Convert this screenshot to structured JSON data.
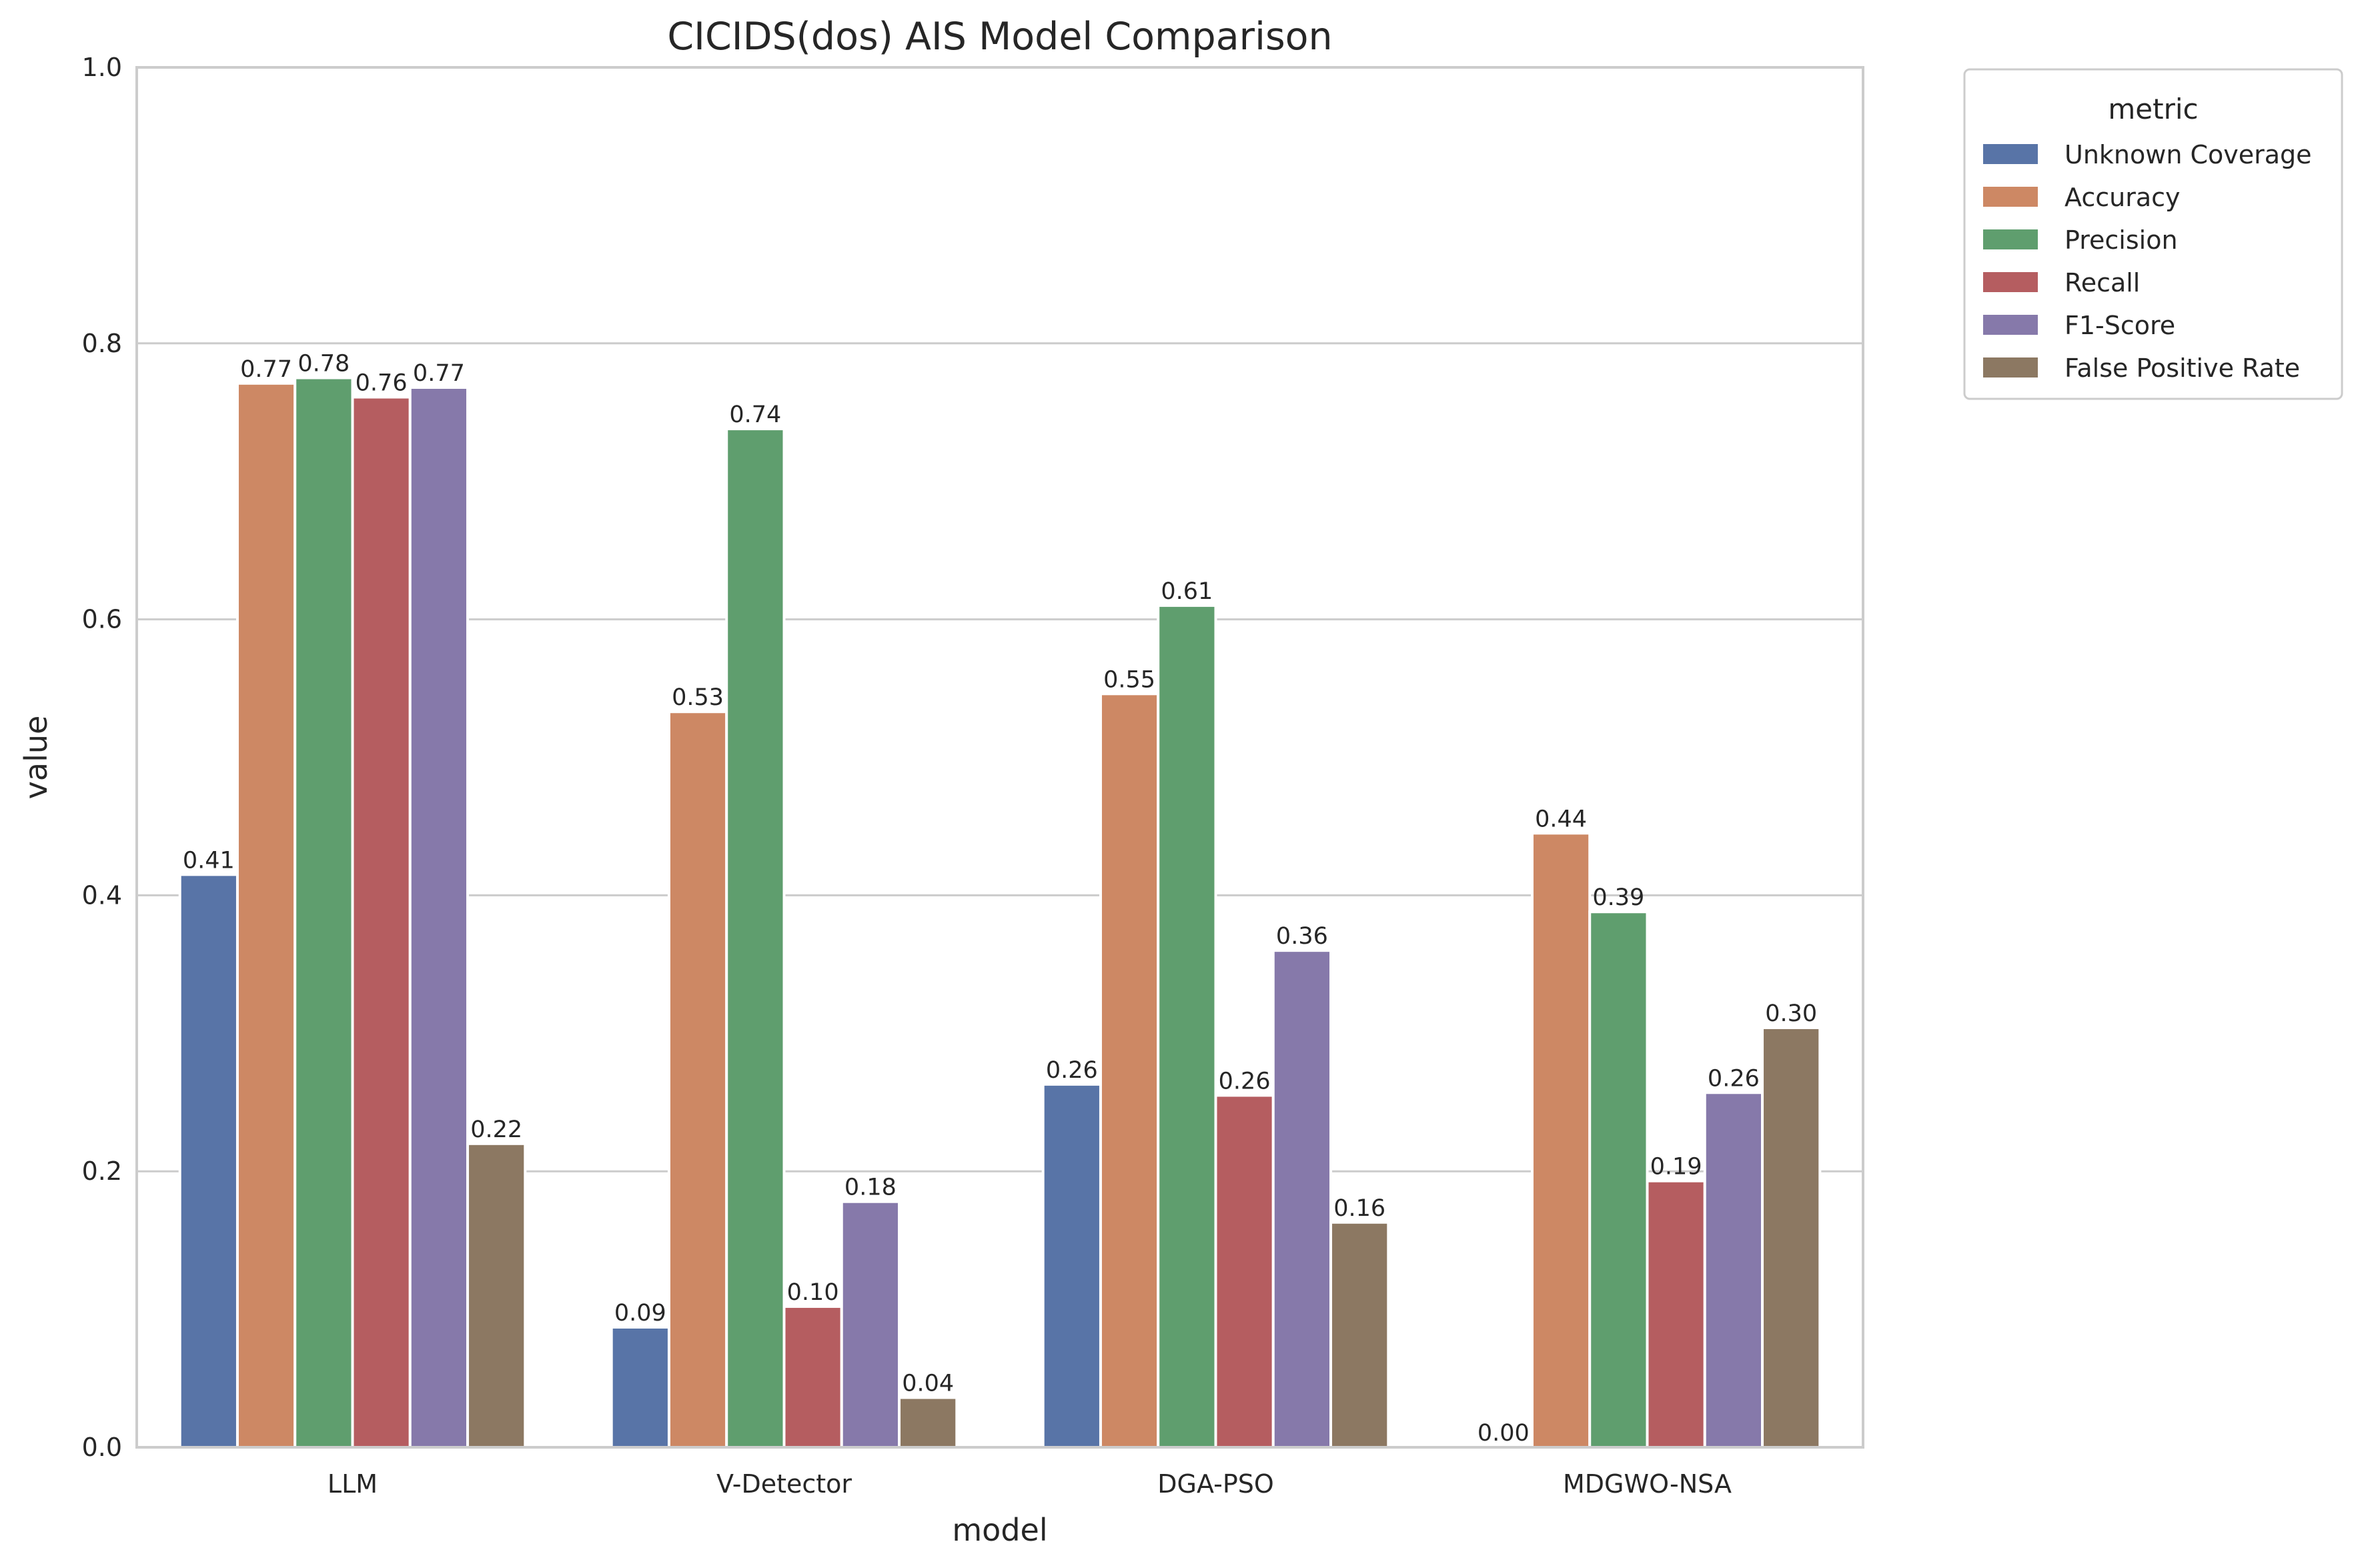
{
  "chart_data": {
    "type": "bar",
    "title": "CICIDS(dos) AIS Model Comparison",
    "xlabel": "model",
    "ylabel": "value",
    "ylim": [
      0,
      1.0
    ],
    "yticks": [
      "0.0",
      "0.2",
      "0.4",
      "0.6",
      "0.8",
      "1.0"
    ],
    "grid": "horizontal",
    "legend": {
      "title": "metric",
      "placement": "outside top-right"
    },
    "categories": [
      "LLM",
      "V-Detector",
      "DGA-PSO",
      "MDGWO-NSA"
    ],
    "series": [
      {
        "name": "Unknown Coverage",
        "color": "#5874a7",
        "values": [
          0.415,
          0.087,
          0.263,
          0.0
        ],
        "labels": [
          "0.41",
          "0.09",
          "0.26",
          "0.00"
        ]
      },
      {
        "name": "Accuracy",
        "color": "#cd8864",
        "values": [
          0.771,
          0.533,
          0.546,
          0.445
        ],
        "labels": [
          "0.77",
          "0.53",
          "0.55",
          "0.44"
        ]
      },
      {
        "name": "Precision",
        "color": "#5f9e6e",
        "values": [
          0.775,
          0.738,
          0.61,
          0.388
        ],
        "labels": [
          "0.78",
          "0.74",
          "0.61",
          "0.39"
        ]
      },
      {
        "name": "Recall",
        "color": "#b55d60",
        "values": [
          0.761,
          0.102,
          0.255,
          0.193
        ],
        "labels": [
          "0.76",
          "0.10",
          "0.26",
          "0.19"
        ]
      },
      {
        "name": "F1-Score",
        "color": "#8679aa",
        "values": [
          0.768,
          0.178,
          0.36,
          0.257
        ],
        "labels": [
          "0.77",
          "0.18",
          "0.36",
          "0.26"
        ]
      },
      {
        "name": "False Positive Rate",
        "color": "#8c7862",
        "values": [
          0.22,
          0.036,
          0.163,
          0.304
        ],
        "labels": [
          "0.22",
          "0.04",
          "0.16",
          "0.30"
        ]
      }
    ]
  }
}
